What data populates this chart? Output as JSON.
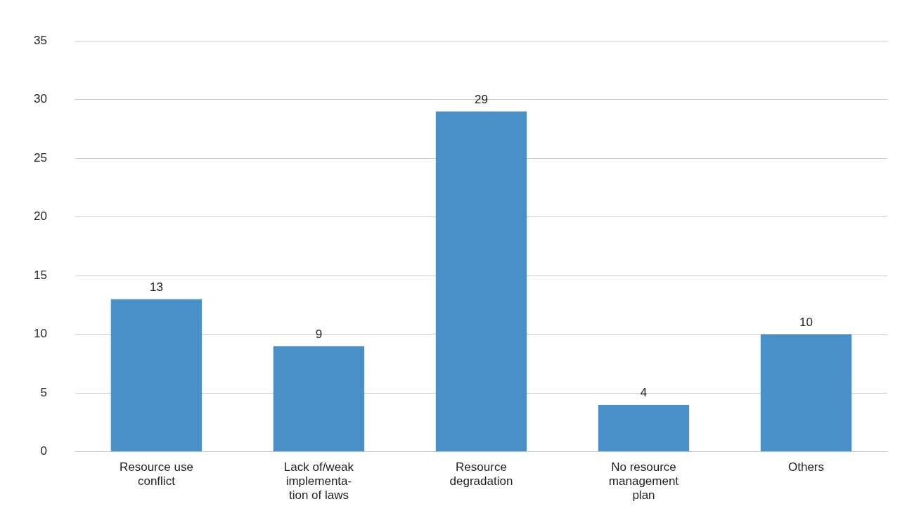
{
  "chart_data": {
    "type": "bar",
    "categories": [
      "Resource use\nconflict",
      "Lack of/weak\nimplementa-\ntion of laws",
      "Resource\ndegradation",
      "No resource\nmanagement\nplan",
      "Others"
    ],
    "values": [
      13,
      9,
      29,
      4,
      10
    ],
    "color": "#4a90c8",
    "ylim": [
      0,
      35
    ],
    "yticks": [
      0,
      5,
      10,
      15,
      20,
      25,
      30,
      35
    ],
    "grid": "y",
    "data_labels": true
  }
}
